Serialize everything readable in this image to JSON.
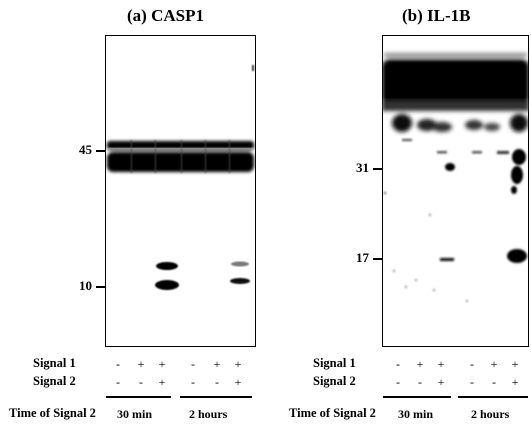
{
  "panels": [
    {
      "title": "(a) CASP1",
      "markers": [
        "45",
        "10"
      ],
      "time_groups": [
        "30 min",
        "2 hours"
      ],
      "signal1": [
        "-",
        "+",
        "+",
        "-",
        "+",
        "+"
      ],
      "signal2": [
        "-",
        "-",
        "+",
        "-",
        "-",
        "+"
      ]
    },
    {
      "title": "(b) IL-1B",
      "markers": [
        "31",
        "17"
      ],
      "time_groups": [
        "30 min",
        "2 hours"
      ],
      "signal1": [
        "-",
        "+",
        "+",
        "-",
        "+",
        "+"
      ],
      "signal2": [
        "-",
        "-",
        "+",
        "-",
        "-",
        "+"
      ]
    }
  ],
  "row_labels": {
    "signal1": "Signal 1",
    "signal2": "Signal 2",
    "time": "Time of Signal 2"
  },
  "colors": {
    "band": "#000000",
    "background": "#ffffff"
  }
}
